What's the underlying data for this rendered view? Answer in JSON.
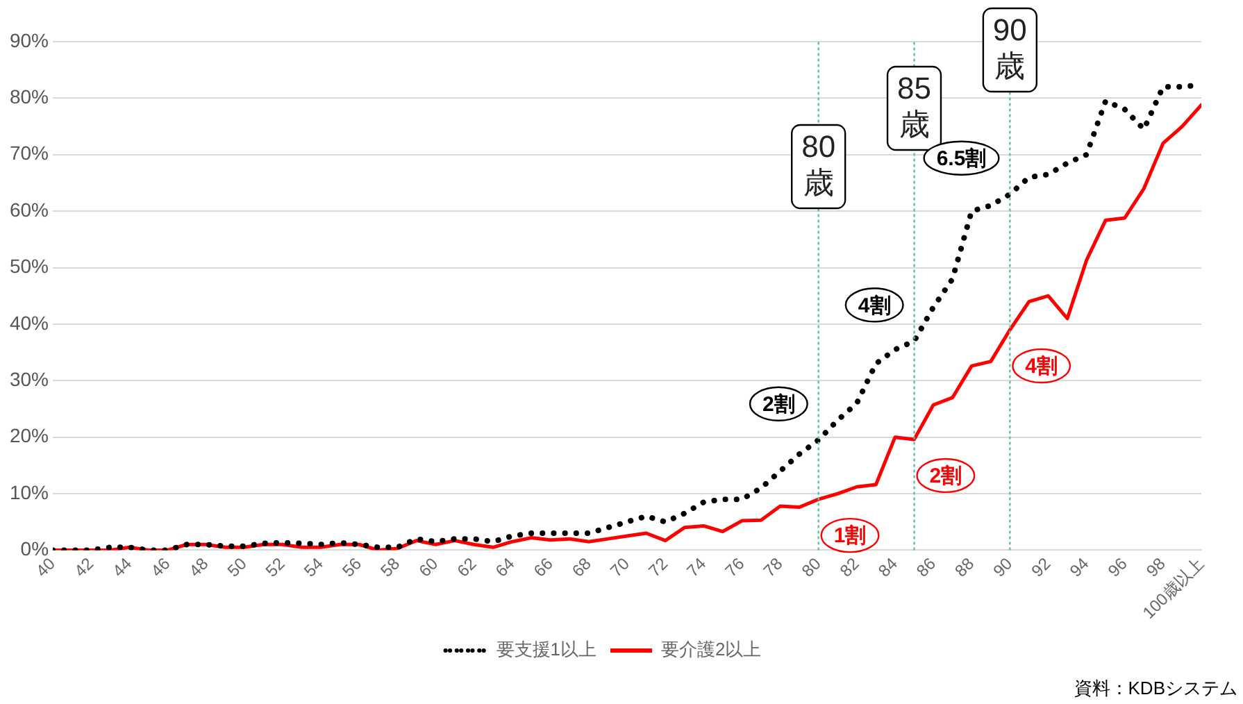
{
  "chart_data": {
    "type": "line",
    "x": [
      40,
      41,
      42,
      43,
      44,
      45,
      46,
      47,
      48,
      49,
      50,
      51,
      52,
      53,
      54,
      55,
      56,
      57,
      58,
      59,
      60,
      61,
      62,
      63,
      64,
      65,
      66,
      67,
      68,
      69,
      70,
      71,
      72,
      73,
      74,
      75,
      76,
      77,
      78,
      79,
      80,
      81,
      82,
      83,
      84,
      85,
      86,
      87,
      88,
      89,
      90,
      91,
      92,
      93,
      94,
      95,
      96,
      97,
      98,
      99,
      100
    ],
    "series": [
      {
        "name": "要支援1以上",
        "color": "#000000",
        "line_style": "dotted",
        "values": [
          0,
          0,
          0,
          0.5,
          0.5,
          0,
          0,
          1,
          1,
          0.7,
          0.7,
          1.2,
          1.3,
          1.2,
          1,
          1.3,
          1,
          0.5,
          0.5,
          2,
          1.5,
          2,
          2,
          1.5,
          2.5,
          3,
          3,
          3,
          3,
          4,
          5,
          6,
          5,
          6.5,
          8.5,
          9,
          9,
          11,
          14,
          17,
          19.5,
          23,
          26,
          33,
          35.5,
          37,
          43,
          48,
          60,
          61,
          63,
          66,
          66.5,
          68.5,
          70,
          79.5,
          78,
          74.5,
          82,
          82,
          82.4
        ]
      },
      {
        "name": "要介護2以上",
        "color": "#ff0000",
        "line_style": "solid",
        "values": [
          0,
          0,
          0,
          0,
          0.5,
          0,
          0,
          1,
          1,
          0.5,
          0.5,
          1,
          1,
          0.5,
          0.5,
          1,
          1,
          0,
          0.3,
          1.7,
          1,
          1.7,
          1,
          0.5,
          1.5,
          2.2,
          1.8,
          2,
          1.5,
          2,
          2.5,
          3,
          1.7,
          4,
          4.3,
          3.3,
          5.2,
          5.3,
          7.8,
          7.6,
          9,
          10,
          11.2,
          11.6,
          20,
          19.6,
          25.7,
          27,
          32.6,
          33.4,
          39,
          44,
          45,
          41,
          51.3,
          58.4,
          58.8,
          64,
          72,
          75,
          78.8
        ]
      }
    ],
    "xlim": [
      40,
      100
    ],
    "xticks": [
      40,
      42,
      44,
      46,
      48,
      50,
      52,
      54,
      56,
      58,
      60,
      62,
      64,
      66,
      68,
      70,
      72,
      74,
      76,
      78,
      80,
      82,
      84,
      86,
      88,
      90,
      92,
      94,
      96,
      98,
      {
        "value": 100,
        "label": "100歳以上"
      }
    ],
    "ylim": [
      0,
      90
    ],
    "yticks": [
      {
        "value": 0,
        "label": "0%"
      },
      {
        "value": 10,
        "label": "10%"
      },
      {
        "value": 20,
        "label": "20%"
      },
      {
        "value": 30,
        "label": "30%"
      },
      {
        "value": 40,
        "label": "40%"
      },
      {
        "value": 50,
        "label": "50%"
      },
      {
        "value": 60,
        "label": "60%"
      },
      {
        "value": 70,
        "label": "70%"
      },
      {
        "value": 80,
        "label": "80%"
      },
      {
        "value": 90,
        "label": "90%"
      }
    ],
    "grid": "y",
    "legend": "bottom",
    "ref_lines": [
      {
        "axis": "x",
        "value": 80,
        "label": "80\n歳",
        "color": "#5fbfa0",
        "line_style": "dotted"
      },
      {
        "axis": "x",
        "value": 85,
        "label": "85\n歳",
        "color": "#5fbfa0",
        "line_style": "dotted"
      },
      {
        "axis": "x",
        "value": 90,
        "label": "90\n歳",
        "color": "#5fbfa0",
        "line_style": "dotted"
      }
    ],
    "annotations": [
      {
        "text": "2割",
        "x": 80,
        "y": 19.5
      },
      {
        "text": "4割",
        "x": 85,
        "y": 37
      },
      {
        "text": "6.5割",
        "x": 90,
        "y": 63
      },
      {
        "text": "1割",
        "x": 80,
        "y": 9
      },
      {
        "text": "2割",
        "x": 85,
        "y": 19.6
      },
      {
        "text": "4割",
        "x": 90,
        "y": 39
      },
      "資料：KDBシステム"
    ]
  }
}
